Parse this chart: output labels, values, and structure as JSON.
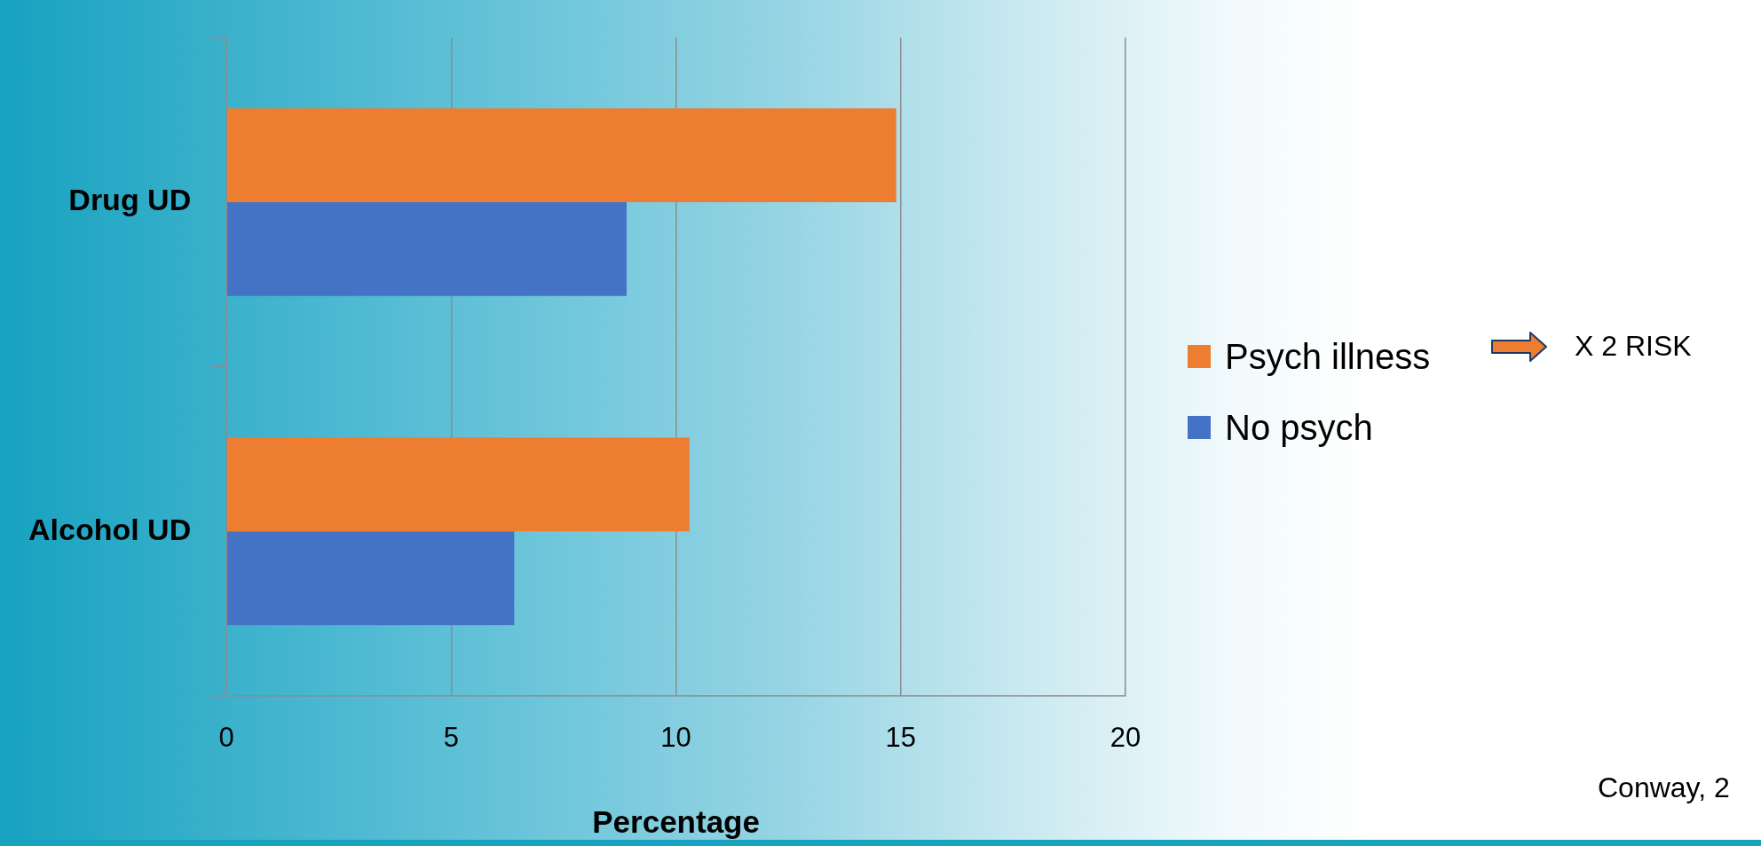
{
  "chart_data": {
    "type": "bar",
    "orientation": "horizontal",
    "categories": [
      "Drug UD",
      "Alcohol UD"
    ],
    "series": [
      {
        "name": "Psych illness",
        "color": "#ed7d31",
        "values": [
          14.9,
          10.3
        ]
      },
      {
        "name": "No psych",
        "color": "#4472c4",
        "values": [
          8.9,
          6.4
        ]
      }
    ],
    "xlabel": "Percentage",
    "xlim": [
      0,
      20
    ],
    "xticks": [
      0,
      5,
      10,
      15,
      20
    ],
    "grid": "x",
    "legend": "right",
    "annotations": [
      "X 2 RISK",
      "Conway, 2"
    ]
  }
}
